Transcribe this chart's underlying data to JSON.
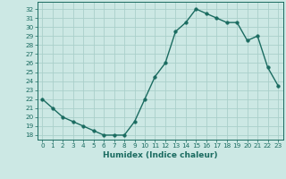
{
  "x": [
    0,
    1,
    2,
    3,
    4,
    5,
    6,
    7,
    8,
    9,
    10,
    11,
    12,
    13,
    14,
    15,
    16,
    17,
    18,
    19,
    20,
    21,
    22,
    23
  ],
  "y": [
    22,
    21,
    20,
    19.5,
    19,
    18.5,
    18,
    18,
    18,
    19.5,
    22,
    24.5,
    26,
    29.5,
    30.5,
    32,
    31.5,
    31,
    30.5,
    30.5,
    28.5,
    29,
    25.5,
    23.5
  ],
  "xlabel": "Humidex (Indice chaleur)",
  "bg_color": "#cce8e4",
  "grid_color": "#aacfca",
  "line_color": "#1a6b60",
  "ylim_min": 17.5,
  "ylim_max": 32.8,
  "xlim_min": -0.5,
  "xlim_max": 23.5,
  "yticks": [
    18,
    19,
    20,
    21,
    22,
    23,
    24,
    25,
    26,
    27,
    28,
    29,
    30,
    31,
    32
  ],
  "xticks": [
    0,
    1,
    2,
    3,
    4,
    5,
    6,
    7,
    8,
    9,
    10,
    11,
    12,
    13,
    14,
    15,
    16,
    17,
    18,
    19,
    20,
    21,
    22,
    23
  ],
  "tick_fontsize": 5.2,
  "xlabel_fontsize": 6.5
}
